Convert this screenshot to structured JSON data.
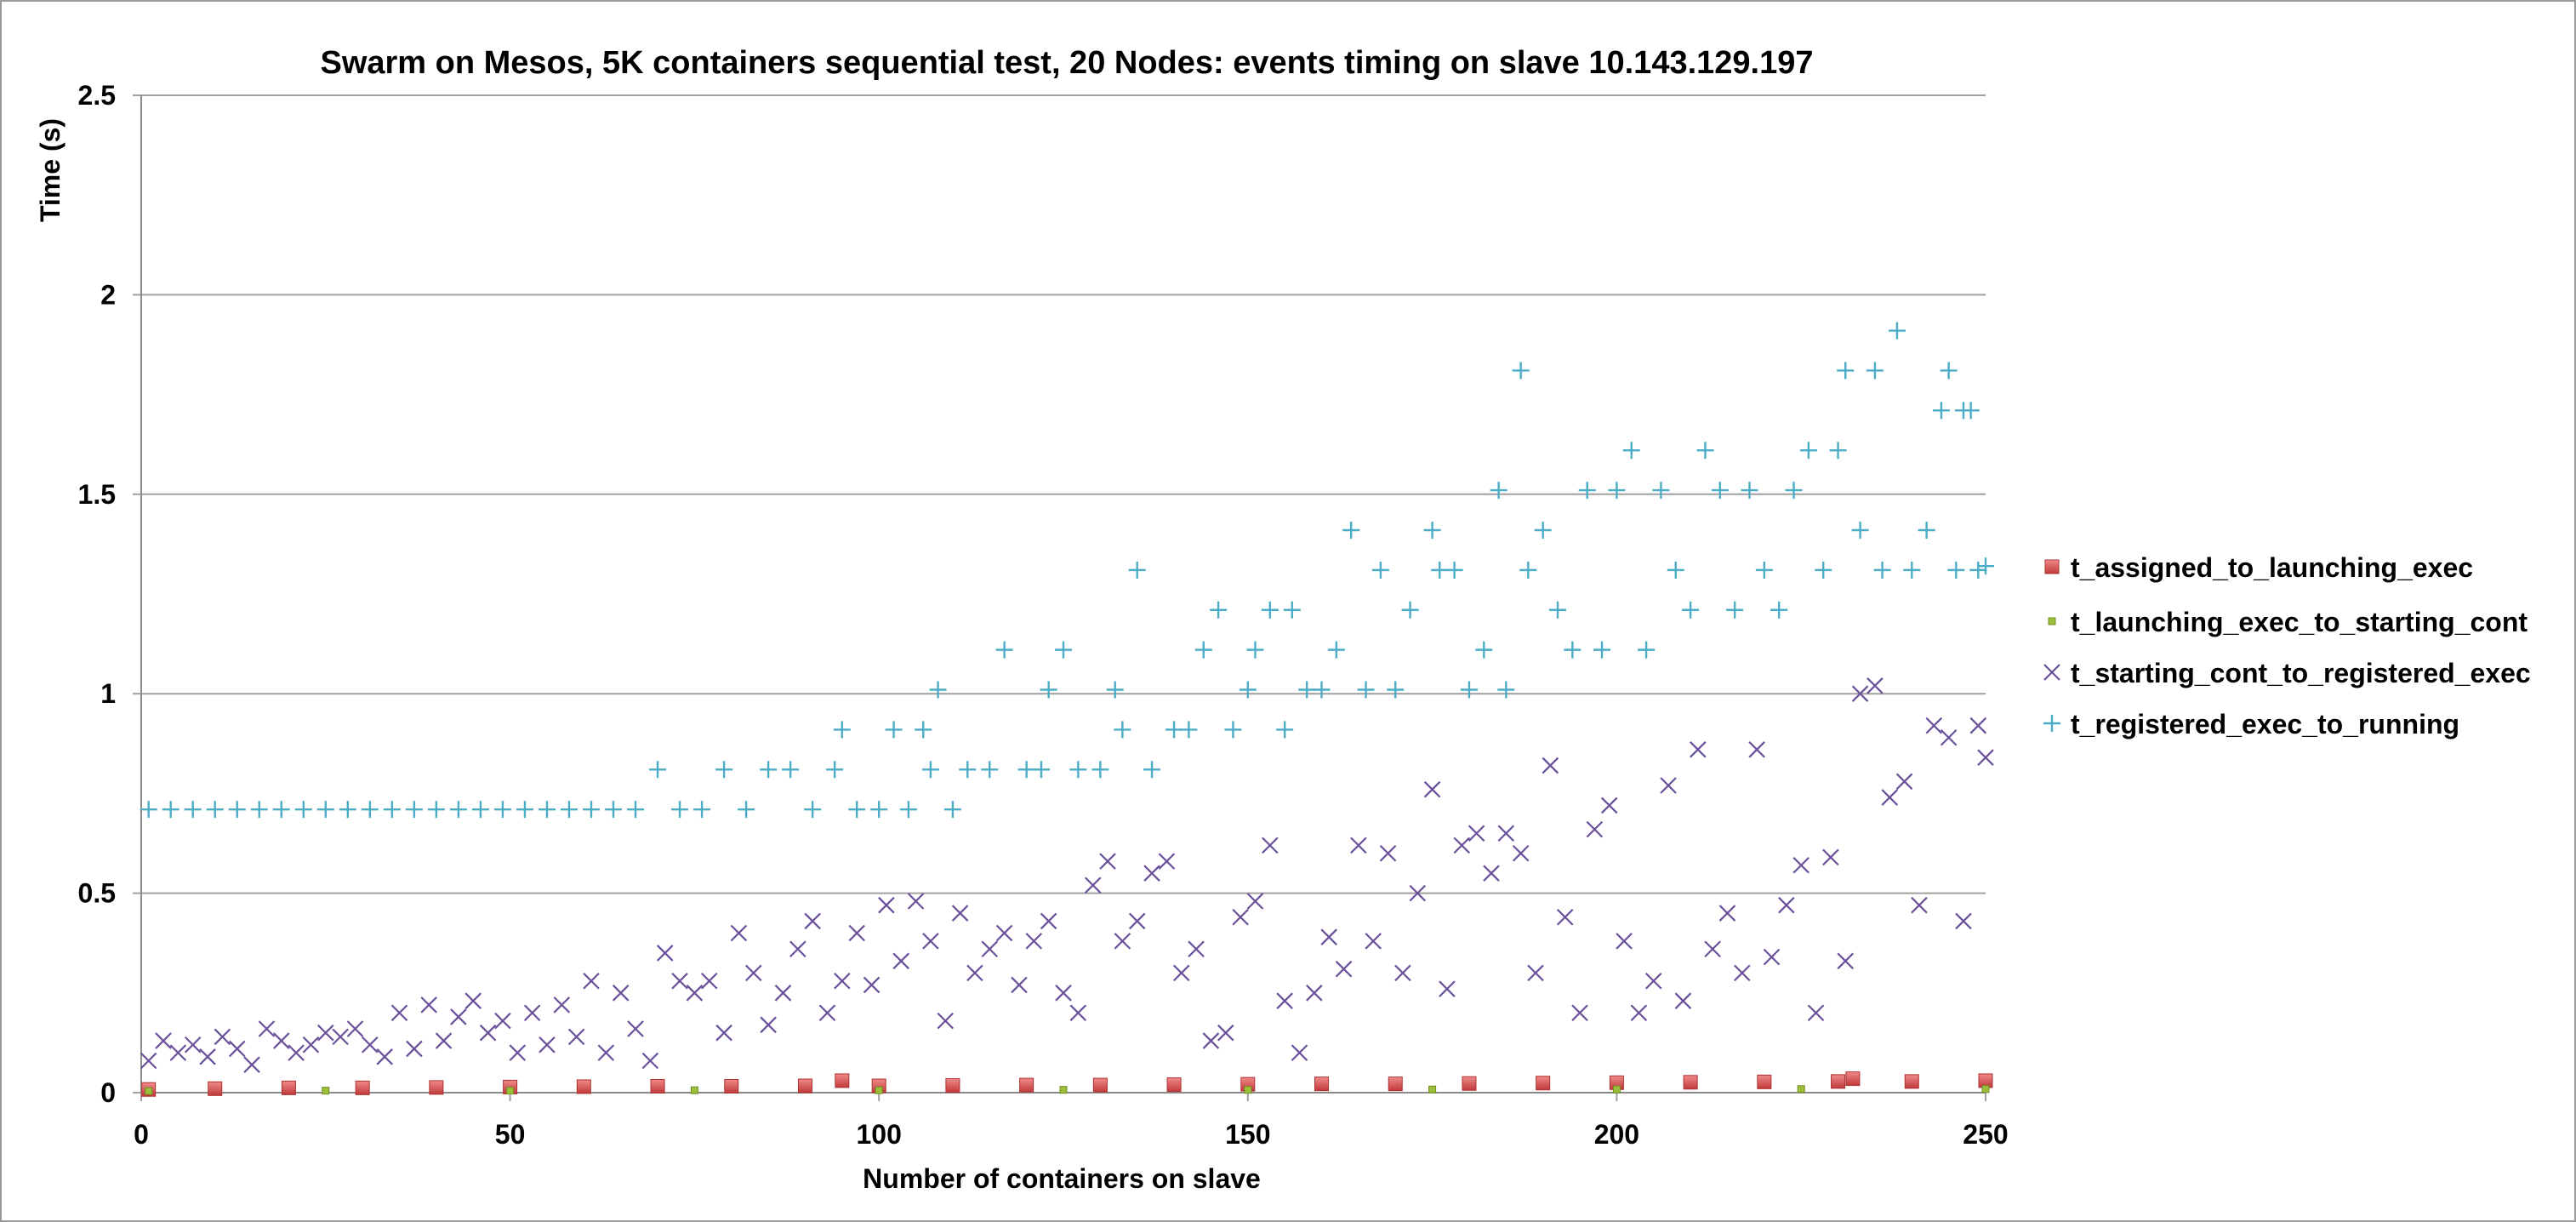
{
  "chart_data": {
    "type": "scatter",
    "title": "Swarm on Mesos, 5K containers sequential test, 20 Nodes: events timing on slave 10.143.129.197",
    "xlabel": "Number of containers on slave",
    "ylabel": "Time (s)",
    "xlim": [
      0,
      250
    ],
    "ylim": [
      0,
      2.5
    ],
    "xticks": [
      "0",
      "50",
      "100",
      "150",
      "200",
      "250"
    ],
    "yticks": [
      "0",
      "0.5",
      "1",
      "1.5",
      "2",
      "2.5"
    ],
    "grid": "horizontal",
    "legend": "right",
    "series": [
      {
        "name": "t_assigned_to_launching_exec",
        "marker": "square",
        "color": "#e05a5a",
        "x": [
          1,
          10,
          20,
          30,
          40,
          50,
          60,
          70,
          80,
          90,
          95,
          100,
          110,
          120,
          130,
          140,
          150,
          160,
          170,
          180,
          190,
          200,
          210,
          220,
          230,
          232,
          240,
          250
        ],
        "y": [
          0.008,
          0.01,
          0.012,
          0.012,
          0.013,
          0.014,
          0.015,
          0.016,
          0.016,
          0.017,
          0.03,
          0.017,
          0.018,
          0.019,
          0.019,
          0.02,
          0.021,
          0.022,
          0.022,
          0.023,
          0.024,
          0.025,
          0.026,
          0.027,
          0.028,
          0.035,
          0.028,
          0.03
        ]
      },
      {
        "name": "t_launching_exec_to_starting_cont",
        "marker": "dot",
        "color": "#9bbf3a",
        "x": [
          1,
          25,
          50,
          75,
          100,
          125,
          150,
          175,
          200,
          225,
          250
        ],
        "y": [
          0.004,
          0.005,
          0.005,
          0.006,
          0.006,
          0.007,
          0.007,
          0.008,
          0.008,
          0.009,
          0.009
        ]
      },
      {
        "name": "t_starting_cont_to_registered_exec",
        "marker": "x",
        "color": "#6a4f9a",
        "x": [
          1,
          3,
          5,
          7,
          9,
          11,
          13,
          15,
          17,
          19,
          21,
          23,
          25,
          27,
          29,
          31,
          33,
          35,
          37,
          39,
          41,
          43,
          45,
          47,
          49,
          51,
          53,
          55,
          57,
          59,
          61,
          63,
          65,
          67,
          69,
          71,
          73,
          75,
          77,
          79,
          81,
          83,
          85,
          87,
          89,
          91,
          93,
          95,
          97,
          99,
          101,
          103,
          105,
          107,
          109,
          111,
          113,
          115,
          117,
          119,
          121,
          123,
          125,
          127,
          129,
          131,
          133,
          135,
          137,
          139,
          141,
          143,
          145,
          147,
          149,
          151,
          153,
          155,
          157,
          159,
          161,
          163,
          165,
          167,
          169,
          171,
          173,
          175,
          177,
          179,
          181,
          183,
          185,
          187,
          189,
          191,
          193,
          195,
          197,
          199,
          201,
          203,
          205,
          207,
          209,
          211,
          213,
          215,
          217,
          219,
          221,
          223,
          225,
          227,
          229,
          231,
          233,
          235,
          237,
          239,
          241,
          243,
          245,
          247,
          249,
          250
        ],
        "y": [
          0.08,
          0.13,
          0.1,
          0.12,
          0.09,
          0.14,
          0.11,
          0.07,
          0.16,
          0.13,
          0.1,
          0.12,
          0.15,
          0.14,
          0.16,
          0.12,
          0.09,
          0.2,
          0.11,
          0.22,
          0.13,
          0.19,
          0.23,
          0.15,
          0.18,
          0.1,
          0.2,
          0.12,
          0.22,
          0.14,
          0.28,
          0.1,
          0.25,
          0.16,
          0.08,
          0.35,
          0.28,
          0.25,
          0.28,
          0.15,
          0.4,
          0.3,
          0.17,
          0.25,
          0.36,
          0.43,
          0.2,
          0.28,
          0.4,
          0.27,
          0.47,
          0.33,
          0.48,
          0.38,
          0.18,
          0.45,
          0.3,
          0.36,
          0.4,
          0.27,
          0.38,
          0.43,
          0.25,
          0.2,
          0.52,
          0.58,
          0.38,
          0.43,
          0.55,
          0.58,
          0.3,
          0.36,
          0.13,
          0.15,
          0.44,
          0.48,
          0.62,
          0.23,
          0.1,
          0.25,
          0.39,
          0.31,
          0.62,
          0.38,
          0.6,
          0.3,
          0.5,
          0.76,
          0.26,
          0.62,
          0.65,
          0.55,
          0.65,
          0.6,
          0.3,
          0.82,
          0.44,
          0.2,
          0.66,
          0.72,
          0.38,
          0.2,
          0.28,
          0.77,
          0.23,
          0.86,
          0.36,
          0.45,
          0.3,
          0.86,
          0.34,
          0.47,
          0.57,
          0.2,
          0.59,
          0.33,
          1.0,
          1.02,
          0.74,
          0.78,
          0.47,
          0.92,
          0.89,
          0.43,
          0.92,
          0.84
        ]
      },
      {
        "name": "t_registered_exec_to_running",
        "marker": "plus",
        "color": "#4bacc6",
        "x": [
          1,
          4,
          7,
          10,
          13,
          16,
          19,
          22,
          25,
          28,
          31,
          34,
          37,
          40,
          43,
          46,
          49,
          52,
          55,
          58,
          61,
          64,
          67,
          70,
          73,
          76,
          79,
          82,
          85,
          88,
          91,
          94,
          95,
          97,
          100,
          102,
          104,
          106,
          107,
          108,
          110,
          112,
          115,
          117,
          120,
          122,
          123,
          125,
          127,
          130,
          132,
          133,
          135,
          137,
          140,
          142,
          144,
          146,
          148,
          150,
          151,
          153,
          155,
          156,
          158,
          160,
          162,
          164,
          166,
          168,
          170,
          172,
          175,
          176,
          178,
          180,
          182,
          184,
          185,
          187,
          188,
          190,
          192,
          194,
          196,
          198,
          200,
          202,
          204,
          206,
          208,
          210,
          212,
          214,
          216,
          218,
          220,
          222,
          224,
          226,
          228,
          230,
          231,
          233,
          235,
          236,
          238,
          240,
          242,
          244,
          245,
          246,
          247,
          248,
          249,
          250
        ],
        "y": [
          0.71,
          0.71,
          0.71,
          0.71,
          0.71,
          0.71,
          0.71,
          0.71,
          0.71,
          0.71,
          0.71,
          0.71,
          0.71,
          0.71,
          0.71,
          0.71,
          0.71,
          0.71,
          0.71,
          0.71,
          0.71,
          0.71,
          0.71,
          0.81,
          0.71,
          0.71,
          0.81,
          0.71,
          0.81,
          0.81,
          0.71,
          0.81,
          0.91,
          0.71,
          0.71,
          0.91,
          0.71,
          0.91,
          0.81,
          1.01,
          0.71,
          0.81,
          0.81,
          1.11,
          0.81,
          0.81,
          1.01,
          1.11,
          0.81,
          0.81,
          1.01,
          0.91,
          1.31,
          0.81,
          0.91,
          0.91,
          1.11,
          1.21,
          0.91,
          1.01,
          1.11,
          1.21,
          0.91,
          1.21,
          1.01,
          1.01,
          1.11,
          1.41,
          1.01,
          1.31,
          1.01,
          1.21,
          1.41,
          1.31,
          1.31,
          1.01,
          1.11,
          1.51,
          1.01,
          1.81,
          1.31,
          1.41,
          1.21,
          1.11,
          1.51,
          1.11,
          1.51,
          1.61,
          1.11,
          1.51,
          1.31,
          1.21,
          1.61,
          1.51,
          1.21,
          1.51,
          1.31,
          1.21,
          1.51,
          1.61,
          1.31,
          1.61,
          1.81,
          1.41,
          1.81,
          1.31,
          1.91,
          1.31,
          1.41,
          1.71,
          1.81,
          1.31,
          1.71,
          1.71,
          1.31,
          1.32
        ]
      }
    ]
  }
}
